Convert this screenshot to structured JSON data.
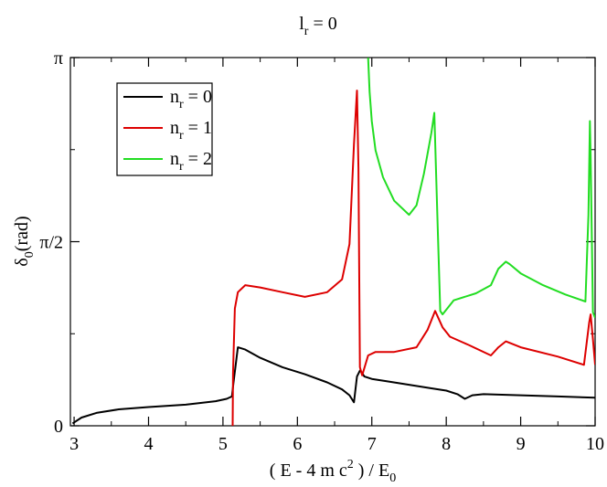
{
  "chart_data": {
    "type": "line",
    "title": "l_r = 0",
    "title_main": "l",
    "title_sub": "r",
    "title_rest": " = 0",
    "xlabel": "( E - 4 m c^2 ) / E_0",
    "xlabel_part1": "( E - 4 m c",
    "xlabel_sup": "2",
    "xlabel_part2": " ) / E",
    "xlabel_sub": "0",
    "ylabel": "δ_0(rad)",
    "ylabel_main": "δ",
    "ylabel_sub": "0",
    "ylabel_rest": "(rad)",
    "xlim": [
      2.95,
      10.0
    ],
    "ylim": [
      0,
      3.14159
    ],
    "grid": false,
    "legend_position": "top-left",
    "x_ticks": [
      {
        "value": 3,
        "label": "3"
      },
      {
        "value": 4,
        "label": "4"
      },
      {
        "value": 5,
        "label": "5"
      },
      {
        "value": 6,
        "label": "6"
      },
      {
        "value": 7,
        "label": "7"
      },
      {
        "value": 8,
        "label": "8"
      },
      {
        "value": 9,
        "label": "9"
      },
      {
        "value": 10,
        "label": "10"
      }
    ],
    "y_ticks": [
      {
        "value": 0,
        "label": "0"
      },
      {
        "value": 1.5708,
        "label": "π/2"
      },
      {
        "value": 3.14159,
        "label": "π"
      }
    ],
    "series": [
      {
        "name": "n_r = 0",
        "legend_main": "n",
        "legend_sub": "r",
        "legend_rest": " = 0",
        "color": "#000000",
        "x": [
          2.98,
          3.1,
          3.3,
          3.6,
          4.0,
          4.5,
          4.9,
          5.05,
          5.12,
          5.14,
          5.2,
          5.3,
          5.5,
          5.8,
          6.1,
          6.4,
          6.6,
          6.7,
          6.76,
          6.8,
          6.84,
          6.86,
          6.9,
          7.0,
          7.2,
          7.5,
          7.8,
          8.0,
          8.15,
          8.25,
          8.35,
          8.5,
          9.0,
          9.5,
          10.0
        ],
        "y": [
          0.02,
          0.07,
          0.11,
          0.14,
          0.16,
          0.18,
          0.21,
          0.23,
          0.25,
          0.36,
          0.67,
          0.65,
          0.58,
          0.5,
          0.44,
          0.37,
          0.31,
          0.26,
          0.2,
          0.42,
          0.47,
          0.46,
          0.42,
          0.4,
          0.38,
          0.35,
          0.32,
          0.3,
          0.27,
          0.23,
          0.26,
          0.27,
          0.26,
          0.25,
          0.24
        ]
      },
      {
        "name": "n_r = 1",
        "legend_main": "n",
        "legend_sub": "r",
        "legend_rest": " = 1",
        "color": "#dd0000",
        "x": [
          5.13,
          5.135,
          5.16,
          5.2,
          5.3,
          5.5,
          5.8,
          6.1,
          6.4,
          6.6,
          6.7,
          6.76,
          6.8,
          6.82,
          6.84,
          6.87,
          6.95,
          7.05,
          7.3,
          7.6,
          7.75,
          7.85,
          7.95,
          8.05,
          8.3,
          8.6,
          8.7,
          8.8,
          9.0,
          9.5,
          9.85,
          9.92,
          9.94,
          9.97,
          10.0
        ],
        "y": [
          0.0,
          0.45,
          1.0,
          1.14,
          1.2,
          1.18,
          1.14,
          1.1,
          1.14,
          1.25,
          1.55,
          2.4,
          2.86,
          2.2,
          0.5,
          0.43,
          0.6,
          0.63,
          0.63,
          0.67,
          0.82,
          0.98,
          0.84,
          0.76,
          0.69,
          0.6,
          0.67,
          0.72,
          0.67,
          0.59,
          0.52,
          0.88,
          0.95,
          0.74,
          0.52
        ]
      },
      {
        "name": "n_r = 2",
        "legend_main": "n",
        "legend_sub": "r",
        "legend_rest": " = 2",
        "color": "#22dd22",
        "x": [
          6.95,
          6.97,
          7.0,
          7.05,
          7.15,
          7.3,
          7.5,
          7.6,
          7.7,
          7.8,
          7.84,
          7.88,
          7.92,
          7.95,
          8.1,
          8.4,
          8.6,
          8.7,
          8.8,
          8.85,
          9.0,
          9.3,
          9.6,
          9.87,
          9.91,
          9.93,
          9.94,
          9.97,
          10.0
        ],
        "y": [
          3.14,
          2.85,
          2.6,
          2.35,
          2.12,
          1.92,
          1.8,
          1.88,
          2.15,
          2.5,
          2.67,
          1.8,
          0.98,
          0.95,
          1.07,
          1.13,
          1.2,
          1.34,
          1.4,
          1.38,
          1.3,
          1.2,
          1.12,
          1.06,
          1.8,
          2.6,
          2.3,
          0.97,
          0.92
        ]
      }
    ]
  }
}
